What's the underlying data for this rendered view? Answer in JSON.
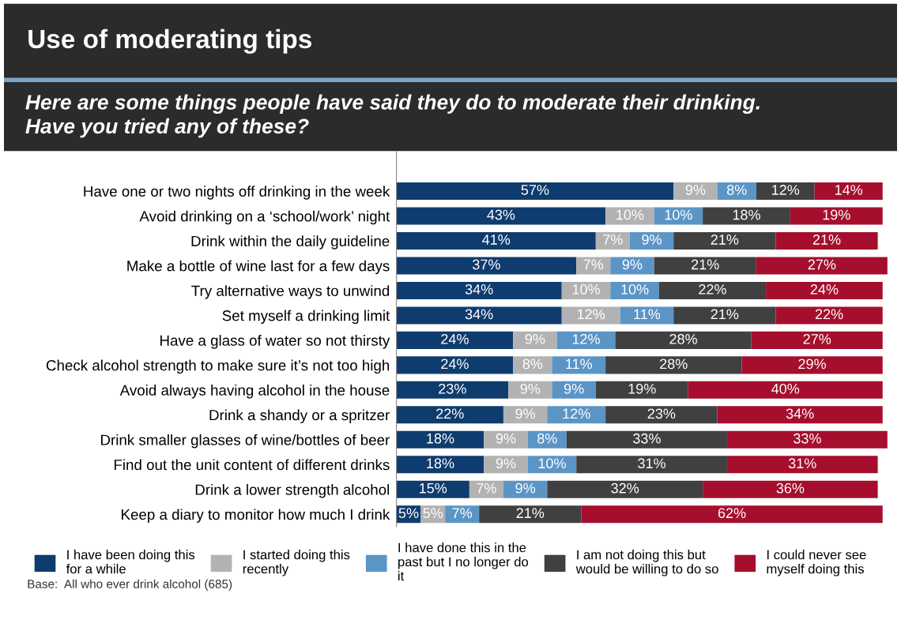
{
  "chart_data": {
    "type": "bar",
    "orientation": "horizontal",
    "stacked": true,
    "legend": "bottom",
    "grid": false,
    "title": "Use of moderating tips",
    "subtitle": "Here are some things people have said they do to moderate their drinking.\nHave you tried any of these?",
    "annotations": [
      "Base:  All who ever drink alcohol (685)"
    ],
    "tick_labels": "y",
    "categories": [
      "Have one or two nights off drinking in the week",
      "Avoid drinking on a ‘school/work’ night",
      "Drink within the daily guideline",
      "Make a bottle of wine last for a few days",
      "Try alternative ways to unwind",
      "Set myself a drinking limit",
      "Have a glass of water so not thirsty",
      "Check alcohol strength to make sure it’s not too high",
      "Avoid always having alcohol in the house",
      "Drink a shandy or a spritzer",
      "Drink smaller glasses of wine/bottles of beer",
      "Find out the unit content of different drinks",
      "Drink a lower strength alcohol",
      "Keep a diary to monitor how much I drink"
    ],
    "series": [
      {
        "name": "I have been doing this\nfor a while",
        "color": "#0f3c6e",
        "values": [
          57,
          43,
          41,
          37,
          34,
          34,
          24,
          24,
          23,
          22,
          18,
          18,
          15,
          5
        ],
        "value_labels": [
          "57%",
          "43%",
          "41%",
          "37%",
          "34%",
          "34%",
          "24%",
          "24%",
          "23%",
          "22%",
          "18%",
          "18%",
          "15%",
          "5%"
        ]
      },
      {
        "name": "I started doing this\nrecently",
        "color": "#b2b2b2",
        "values": [
          9,
          10,
          7,
          7,
          10,
          12,
          9,
          8,
          9,
          9,
          9,
          9,
          7,
          5
        ],
        "value_labels": [
          "9%",
          "10%",
          "7%",
          "7%",
          "10%",
          "12%",
          "9%",
          "8%",
          "9%",
          "9%",
          "9%",
          "9%",
          "7%",
          "5%"
        ]
      },
      {
        "name": "I have done this in the\npast but I no longer do\nit",
        "color": "#5b95c6",
        "values": [
          8,
          10,
          9,
          9,
          10,
          11,
          12,
          11,
          9,
          12,
          8,
          10,
          9,
          7
        ],
        "value_labels": [
          "8%",
          "10%",
          "9%",
          "9%",
          "10%",
          "11%",
          "12%",
          "11%",
          "9%",
          "12%",
          "8%",
          "10%",
          "9%",
          "7%"
        ]
      },
      {
        "name": "I am not doing this but\nwould be willing to do so",
        "color": "#404040",
        "values": [
          12,
          18,
          21,
          21,
          22,
          21,
          28,
          28,
          19,
          23,
          33,
          31,
          32,
          21
        ],
        "value_labels": [
          "12%",
          "18%",
          "21%",
          "21%",
          "22%",
          "21%",
          "28%",
          "28%",
          "19%",
          "23%",
          "33%",
          "31%",
          "32%",
          "21%"
        ]
      },
      {
        "name": "I could never see\nmyself doing this",
        "color": "#a50f2d",
        "values": [
          14,
          19,
          21,
          27,
          24,
          22,
          27,
          29,
          40,
          34,
          33,
          31,
          36,
          62
        ],
        "value_labels": [
          "14%",
          "19%",
          "21%",
          "27%",
          "24%",
          "22%",
          "27%",
          "29%",
          "40%",
          "34%",
          "33%",
          "31%",
          "36%",
          "62%"
        ]
      }
    ]
  }
}
